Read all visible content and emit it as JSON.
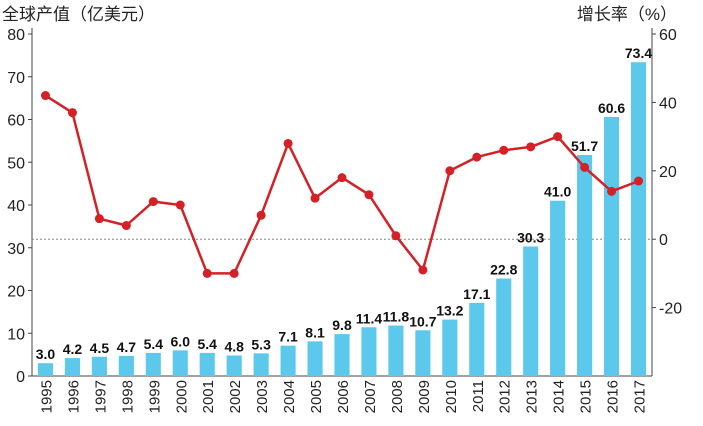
{
  "chart_data": {
    "type": "bar",
    "ylabel_left": "全球产值（亿美元）",
    "ylabel_right": "增长率（%）",
    "categories": [
      "1995",
      "1996",
      "1997",
      "1998",
      "1999",
      "2000",
      "2001",
      "2002",
      "2003",
      "2004",
      "2005",
      "2006",
      "2007",
      "2008",
      "2009",
      "2010",
      "2011",
      "2012",
      "2013",
      "2014",
      "2015",
      "2016",
      "2017"
    ],
    "series": [
      {
        "type": "bar",
        "axis": "left",
        "values": [
          3.0,
          4.2,
          4.5,
          4.7,
          5.4,
          6.0,
          5.4,
          4.8,
          5.3,
          7.1,
          8.1,
          9.8,
          11.4,
          11.8,
          10.7,
          13.2,
          17.1,
          22.8,
          30.3,
          41.0,
          51.7,
          60.6,
          73.4
        ],
        "labels": [
          "3.0",
          "4.2",
          "4.5",
          "4.7",
          "5.4",
          "6.0",
          "5.4",
          "4.8",
          "5.3",
          "7.1",
          "8.1",
          "9.8",
          "11.4",
          "11.8",
          "10.7",
          "13.2",
          "17.1",
          "22.8",
          "30.3",
          "41.0",
          "51.7",
          "60.6",
          "73.4"
        ]
      },
      {
        "type": "line",
        "axis": "right",
        "values": [
          42,
          37,
          6,
          4,
          11,
          10,
          -10,
          -10,
          7,
          28,
          12,
          18,
          13,
          1,
          -9,
          20,
          24,
          26,
          27,
          30,
          21,
          14,
          17
        ]
      }
    ],
    "ylim_left": [
      0,
      80
    ],
    "yticks_left": [
      "0",
      "10",
      "20",
      "30",
      "40",
      "50",
      "60",
      "70",
      "80"
    ],
    "ylim_right": [
      -40,
      60
    ],
    "yticks_right": [
      "-20",
      "0",
      "20",
      "40",
      "60"
    ],
    "reference_line": {
      "axis": "right",
      "value": 0,
      "style": "dotted"
    },
    "grid": false,
    "colors": {
      "bars": "#5bc8ec",
      "line": "#d42127",
      "text": "#222222",
      "reference": "#888888"
    }
  }
}
